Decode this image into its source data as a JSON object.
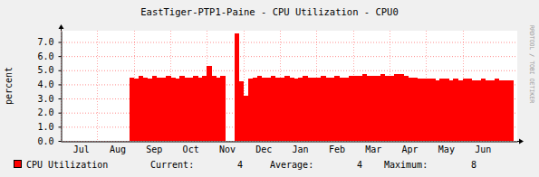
{
  "chart_data": {
    "type": "area",
    "title": "EastTiger-PTP1-Paine - CPU Utilization - CPU0",
    "y_label": "percent",
    "watermark": "RRDTOOL / TOBI OETIKER",
    "categories": [
      null,
      null,
      null,
      null,
      "Jul",
      null,
      null,
      null,
      null,
      null,
      null,
      null,
      "Aug",
      null,
      null,
      null,
      null,
      null,
      null,
      null,
      "Sep",
      null,
      null,
      null,
      null,
      null,
      null,
      null,
      "Oct",
      null,
      null,
      null,
      null,
      null,
      null,
      null,
      "Nov",
      null,
      null,
      null,
      null,
      null,
      null,
      null,
      "Dec",
      null,
      null,
      null,
      null,
      null,
      null,
      null,
      "Jan",
      null,
      null,
      null,
      null,
      null,
      null,
      null,
      "Feb",
      null,
      null,
      null,
      null,
      null,
      null,
      null,
      "Mar",
      null,
      null,
      null,
      null,
      null,
      null,
      null,
      "Apr",
      null,
      null,
      null,
      null,
      null,
      null,
      null,
      "May",
      null,
      null,
      null,
      null,
      null,
      null,
      null,
      "Jun",
      null,
      null,
      null,
      null,
      null,
      null,
      null
    ],
    "series": [
      {
        "name": "CPU Utilization",
        "color": "#ff0000",
        "values": [
          null,
          null,
          null,
          null,
          null,
          null,
          null,
          null,
          null,
          null,
          null,
          null,
          null,
          null,
          null,
          4.5,
          4.4,
          4.6,
          4.5,
          4.4,
          4.6,
          4.5,
          4.5,
          4.6,
          4.5,
          4.4,
          4.6,
          4.5,
          4.5,
          4.6,
          4.5,
          4.6,
          5.3,
          4.6,
          4.5,
          4.6,
          null,
          null,
          7.6,
          4.2,
          3.2,
          4.4,
          4.5,
          4.6,
          4.5,
          4.5,
          4.6,
          4.5,
          4.5,
          4.6,
          4.5,
          4.4,
          4.5,
          4.6,
          4.5,
          4.5,
          4.5,
          4.6,
          4.5,
          4.5,
          4.6,
          4.5,
          4.5,
          4.6,
          4.6,
          4.6,
          4.7,
          4.6,
          4.6,
          4.6,
          4.7,
          4.6,
          4.6,
          4.7,
          4.7,
          4.6,
          4.5,
          4.5,
          4.4,
          4.4,
          4.4,
          4.4,
          4.3,
          4.4,
          4.4,
          4.3,
          4.4,
          4.3,
          4.4,
          4.4,
          4.3,
          4.3,
          4.4,
          4.3,
          4.3,
          4.4,
          4.3,
          4.3,
          4.3,
          null
        ]
      }
    ],
    "stats": [
      {
        "label": "Current:",
        "value": 4
      },
      {
        "label": "Average:",
        "value": 4
      },
      {
        "label": "Maximum:",
        "value": 8
      }
    ],
    "ylim": [
      0,
      7.8
    ],
    "yticks": [
      {
        "value": 0,
        "label": "0.0"
      },
      {
        "value": 1,
        "label": "1.0"
      },
      {
        "value": 2,
        "label": "2.0"
      },
      {
        "value": 3,
        "label": "3.0"
      },
      {
        "value": 4,
        "label": "4.0"
      },
      {
        "value": 5,
        "label": "5.0"
      },
      {
        "value": 6,
        "label": "6.0"
      },
      {
        "value": 7,
        "label": "7.0"
      }
    ],
    "grid": true,
    "legend": "bottom"
  }
}
